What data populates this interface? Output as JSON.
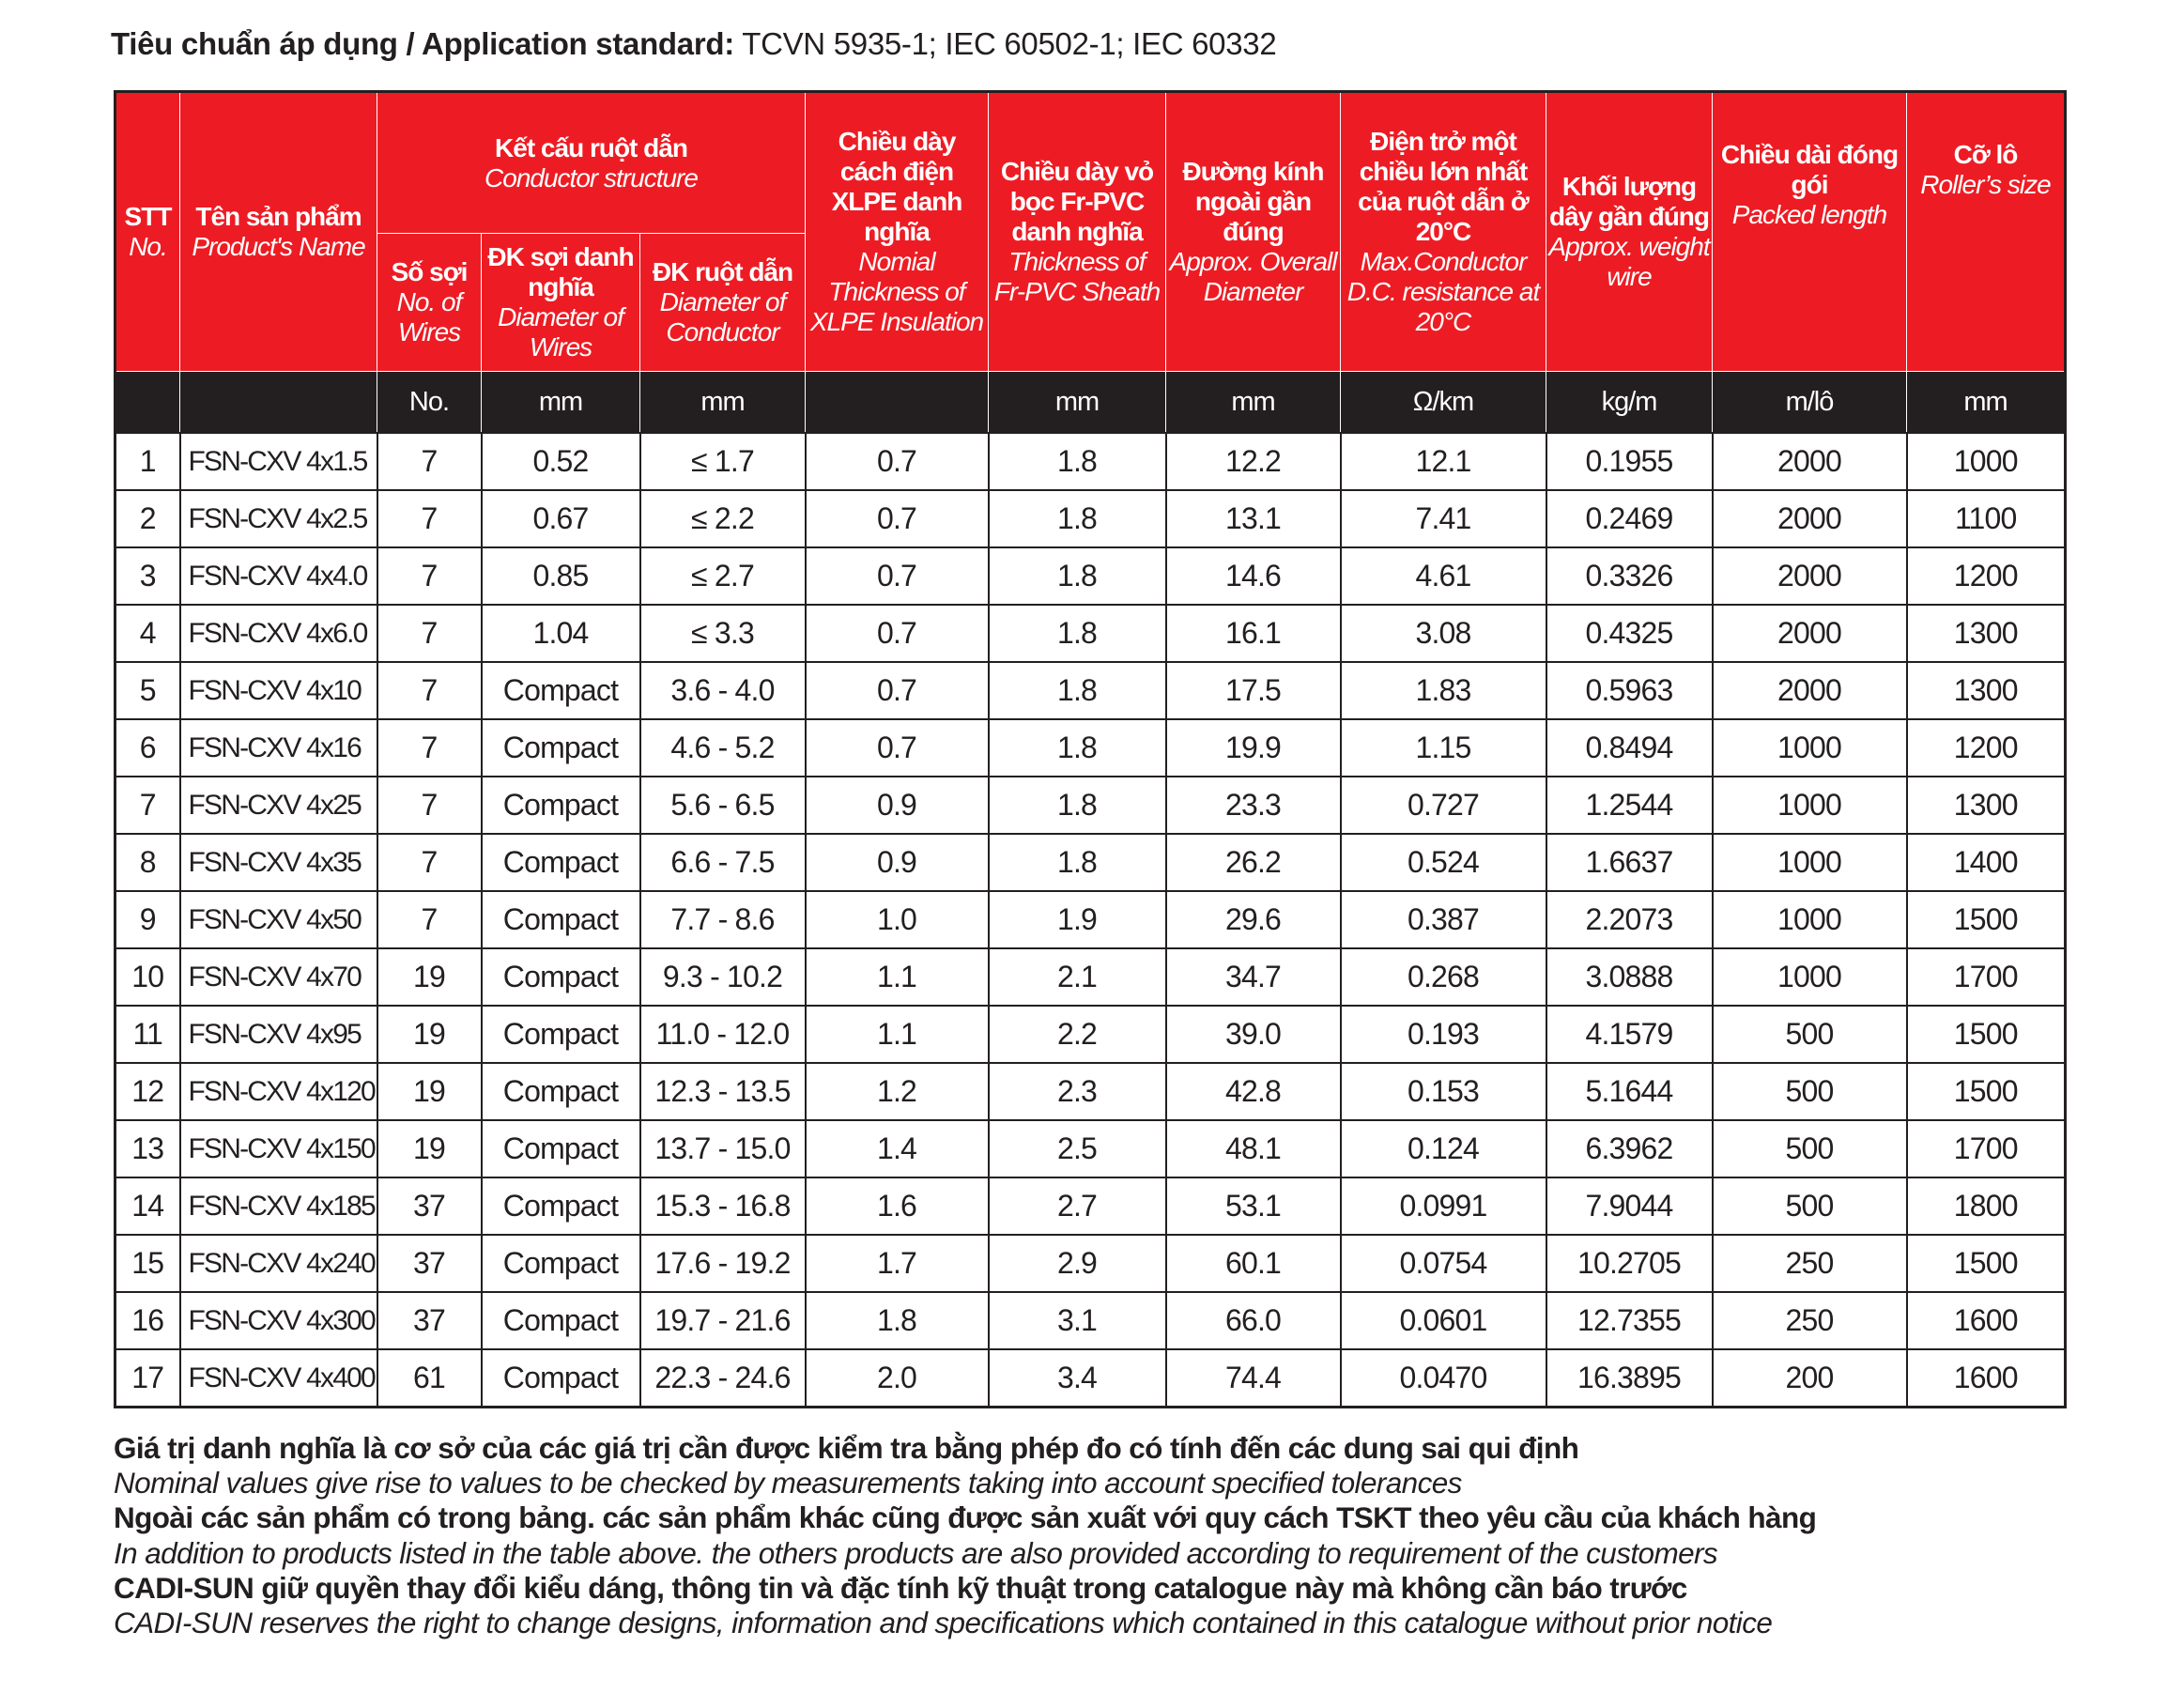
{
  "title": {
    "label": "Tiêu chuẩn áp dụng / Application standard:",
    "value": " TCVN 5935-1; IEC 60502-1; IEC 60332"
  },
  "headers": {
    "stt": {
      "vi": "STT",
      "en": "No."
    },
    "name": {
      "vi": "Tên sản phẩm",
      "en": "Product's Name"
    },
    "structure": {
      "vi": "Kết cấu ruột dẫn",
      "en": "Conductor structure"
    },
    "wires": {
      "vi": "Số sợi",
      "en": "No. of Wires"
    },
    "wire_dia": {
      "vi": "ĐK sợi danh nghĩa",
      "en": "Diameter of Wires"
    },
    "cond_dia": {
      "vi": "ĐK ruột dẫn",
      "en": "Diameter of Conductor"
    },
    "xlpe": {
      "vi": "Chiều dày cách điện XLPE danh nghĩa",
      "en": "Nomial Thickness of XLPE Insulation"
    },
    "sheath": {
      "vi": "Chiều dày vỏ bọc Fr-PVC danh nghĩa",
      "en": "Thickness of Fr-PVC Sheath"
    },
    "overall": {
      "vi": "Đường kính ngoài gần đúng",
      "en": "Approx. Overall Diameter"
    },
    "resistance": {
      "vi": "Điện trở một chiều lớn nhất của ruột dẫn ở 20°C",
      "en": "Max.Conductor D.C. resistance at 20°C"
    },
    "weight": {
      "vi": "Khối lượng dây gần đúng",
      "en": "Approx. weight wire"
    },
    "length": {
      "vi": "Chiều dài đóng gói",
      "en": "Packed length"
    },
    "roller": {
      "vi": "Cỡ lô",
      "en": "Roller’s size"
    }
  },
  "units": [
    "",
    "",
    "No.",
    "mm",
    "mm",
    "",
    "mm",
    "mm",
    "Ω/km",
    "kg/m",
    "m/lô",
    "mm"
  ],
  "rows": [
    [
      "1",
      "FSN-CXV 4x1.5",
      "7",
      "0.52",
      "≤ 1.7",
      "0.7",
      "1.8",
      "12.2",
      "12.1",
      "0.1955",
      "2000",
      "1000"
    ],
    [
      "2",
      "FSN-CXV 4x2.5",
      "7",
      "0.67",
      "≤ 2.2",
      "0.7",
      "1.8",
      "13.1",
      "7.41",
      "0.2469",
      "2000",
      "1100"
    ],
    [
      "3",
      "FSN-CXV 4x4.0",
      "7",
      "0.85",
      "≤ 2.7",
      "0.7",
      "1.8",
      "14.6",
      "4.61",
      "0.3326",
      "2000",
      "1200"
    ],
    [
      "4",
      "FSN-CXV 4x6.0",
      "7",
      "1.04",
      "≤ 3.3",
      "0.7",
      "1.8",
      "16.1",
      "3.08",
      "0.4325",
      "2000",
      "1300"
    ],
    [
      "5",
      "FSN-CXV 4x10",
      "7",
      "Compact",
      "3.6 - 4.0",
      "0.7",
      "1.8",
      "17.5",
      "1.83",
      "0.5963",
      "2000",
      "1300"
    ],
    [
      "6",
      "FSN-CXV 4x16",
      "7",
      "Compact",
      "4.6 - 5.2",
      "0.7",
      "1.8",
      "19.9",
      "1.15",
      "0.8494",
      "1000",
      "1200"
    ],
    [
      "7",
      "FSN-CXV 4x25",
      "7",
      "Compact",
      "5.6 - 6.5",
      "0.9",
      "1.8",
      "23.3",
      "0.727",
      "1.2544",
      "1000",
      "1300"
    ],
    [
      "8",
      "FSN-CXV 4x35",
      "7",
      "Compact",
      "6.6 - 7.5",
      "0.9",
      "1.8",
      "26.2",
      "0.524",
      "1.6637",
      "1000",
      "1400"
    ],
    [
      "9",
      "FSN-CXV 4x50",
      "7",
      "Compact",
      "7.7 - 8.6",
      "1.0",
      "1.9",
      "29.6",
      "0.387",
      "2.2073",
      "1000",
      "1500"
    ],
    [
      "10",
      "FSN-CXV 4x70",
      "19",
      "Compact",
      "9.3 - 10.2",
      "1.1",
      "2.1",
      "34.7",
      "0.268",
      "3.0888",
      "1000",
      "1700"
    ],
    [
      "11",
      "FSN-CXV 4x95",
      "19",
      "Compact",
      "11.0 - 12.0",
      "1.1",
      "2.2",
      "39.0",
      "0.193",
      "4.1579",
      "500",
      "1500"
    ],
    [
      "12",
      "FSN-CXV 4x120",
      "19",
      "Compact",
      "12.3 - 13.5",
      "1.2",
      "2.3",
      "42.8",
      "0.153",
      "5.1644",
      "500",
      "1500"
    ],
    [
      "13",
      "FSN-CXV 4x150",
      "19",
      "Compact",
      "13.7 - 15.0",
      "1.4",
      "2.5",
      "48.1",
      "0.124",
      "6.3962",
      "500",
      "1700"
    ],
    [
      "14",
      "FSN-CXV 4x185",
      "37",
      "Compact",
      "15.3 - 16.8",
      "1.6",
      "2.7",
      "53.1",
      "0.0991",
      "7.9044",
      "500",
      "1800"
    ],
    [
      "15",
      "FSN-CXV 4x240",
      "37",
      "Compact",
      "17.6 - 19.2",
      "1.7",
      "2.9",
      "60.1",
      "0.0754",
      "10.2705",
      "250",
      "1500"
    ],
    [
      "16",
      "FSN-CXV 4x300",
      "37",
      "Compact",
      "19.7 - 21.6",
      "1.8",
      "3.1",
      "66.0",
      "0.0601",
      "12.7355",
      "250",
      "1600"
    ],
    [
      "17",
      "FSN-CXV 4x400",
      "61",
      "Compact",
      "22.3 - 24.6",
      "2.0",
      "3.4",
      "74.4",
      "0.0470",
      "16.3895",
      "200",
      "1600"
    ]
  ],
  "notes": [
    {
      "style": "b",
      "text": "Giá trị danh nghĩa là cơ sở của các giá trị cần được kiểm tra bằng phép đo có tính đến các dung sai qui định"
    },
    {
      "style": "i",
      "text": "Nominal values give rise to values to be checked by measurements taking into account specified tolerances"
    },
    {
      "style": "b",
      "text": "Ngoài các sản phẩm có trong bảng. các sản phẩm khác cũng được sản xuất với quy cách TSKT theo yêu cầu của khách hàng"
    },
    {
      "style": "i",
      "text": "In addition to products listed in the table above. the others products are also provided according to requirement of the customers"
    },
    {
      "style": "b",
      "text": "CADI-SUN giữ quyền thay đổi kiểu dáng, thông tin và đặc tính kỹ thuật trong catalogue này mà không cần báo trước"
    },
    {
      "style": "i",
      "text": "CADI-SUN reserves the right to change designs, information and specifications which contained in this catalogue without prior notice"
    }
  ],
  "colors": {
    "header_red": "#ed1c24",
    "unit_black": "#231f20"
  }
}
